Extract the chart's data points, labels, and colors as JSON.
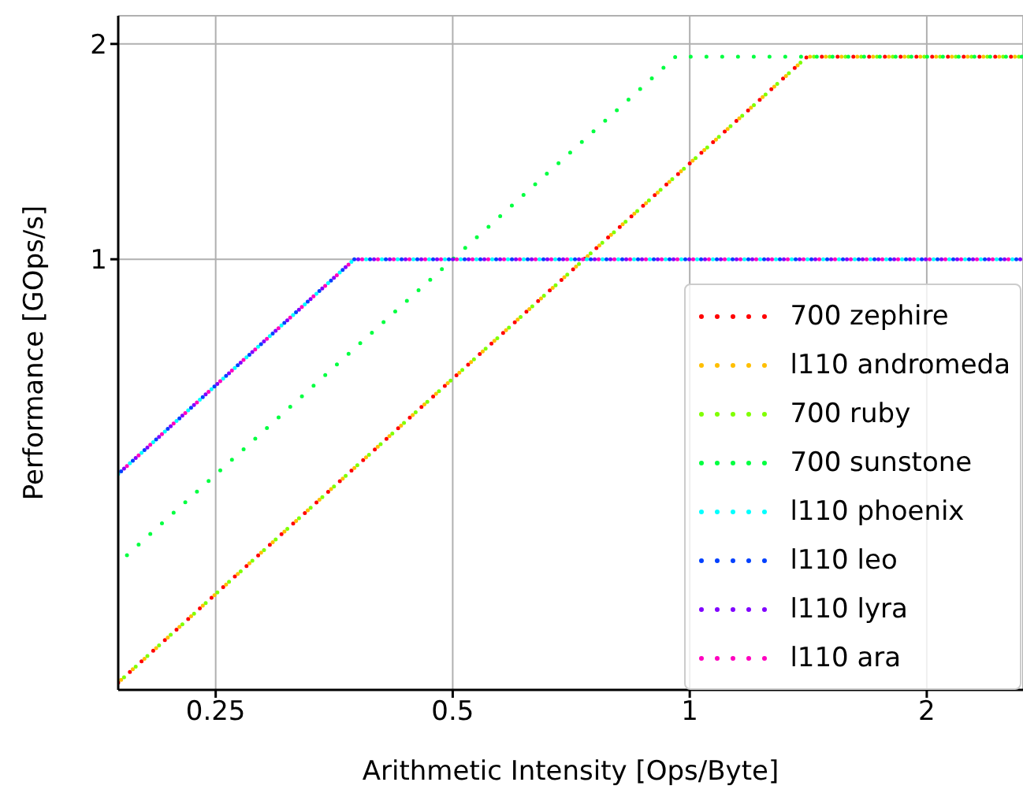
{
  "chart_data": {
    "type": "line",
    "xlabel": "Arithmetic Intensity [Ops/Byte]",
    "ylabel": "Performance [GOps/s]",
    "log": "xy",
    "grid": true,
    "legend": "bottom right",
    "line_style": "dotted",
    "marker": "none",
    "xlim": [
      0.188,
      2.65
    ],
    "ylim": [
      0.25,
      2.19
    ],
    "xticks": [
      0.25,
      0.5,
      1,
      2
    ],
    "yticks": [
      1,
      2
    ],
    "series": [
      {
        "name": "700 zephire",
        "color": "#ff0000",
        "x": [
          0.188,
          1.41,
          2.65
        ],
        "values": [
          0.256,
          1.92,
          1.92
        ]
      },
      {
        "name": "l110 andromeda",
        "color": "#ffbf00",
        "x": [
          0.188,
          1.41,
          2.65
        ],
        "values": [
          0.256,
          1.92,
          1.92
        ]
      },
      {
        "name": "700 ruby",
        "color": "#80ff00",
        "x": [
          0.188,
          1.41,
          2.65
        ],
        "values": [
          0.256,
          1.92,
          1.92
        ]
      },
      {
        "name": "700 sunstone",
        "color": "#00ff40",
        "x": [
          0.188,
          0.96,
          2.65
        ],
        "values": [
          0.376,
          1.92,
          1.92
        ]
      },
      {
        "name": "l110 phoenix",
        "color": "#00ffff",
        "x": [
          0.188,
          0.375,
          2.65
        ],
        "values": [
          0.501,
          1,
          1
        ]
      },
      {
        "name": "l110 leo",
        "color": "#0040ff",
        "x": [
          0.188,
          0.375,
          2.65
        ],
        "values": [
          0.501,
          1,
          1
        ]
      },
      {
        "name": "l110 lyra",
        "color": "#8000ff",
        "x": [
          0.188,
          0.375,
          2.65
        ],
        "values": [
          0.501,
          1,
          1
        ]
      },
      {
        "name": "l110 ara",
        "color": "#ff00bf",
        "x": [
          0.188,
          0.375,
          2.65
        ],
        "values": [
          0.501,
          1,
          1
        ]
      }
    ]
  }
}
